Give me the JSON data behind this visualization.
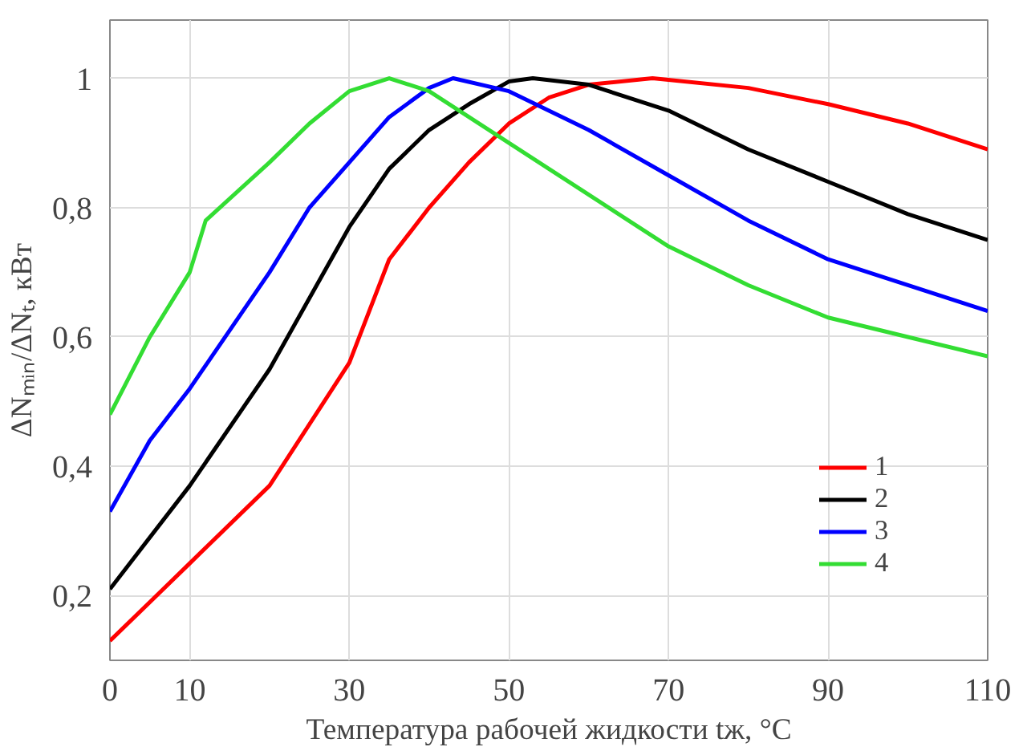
{
  "chart_data": {
    "type": "line",
    "xlabel": "Температура рабочей жидкости tж, °C",
    "ylabel": "ΔNₘᵢₙ/ΔNₜ, кВт",
    "xlim": [
      0,
      110
    ],
    "xticks": [
      0,
      10,
      30,
      50,
      70,
      90,
      110
    ],
    "ylim": [
      0.1,
      1.09
    ],
    "yticks": [
      {
        "value": 0.2,
        "label": "0,2"
      },
      {
        "value": 0.4,
        "label": "0,4"
      },
      {
        "value": 0.6,
        "label": "0,6"
      },
      {
        "value": 0.8,
        "label": "0,8"
      },
      {
        "value": 1,
        "label": "1"
      }
    ],
    "grid": true,
    "legend": "bottom right",
    "marker": "none",
    "line_style": "solid",
    "series": [
      {
        "name": "1",
        "color": "#ff0000",
        "x": [
          0,
          5,
          10,
          20,
          30,
          35,
          40,
          45,
          50,
          55,
          60,
          68,
          80,
          90,
          100,
          110
        ],
        "values": [
          0.13,
          0.19,
          0.25,
          0.37,
          0.56,
          0.72,
          0.8,
          0.87,
          0.93,
          0.97,
          0.99,
          1.0,
          0.985,
          0.96,
          0.93,
          0.89
        ]
      },
      {
        "name": "2",
        "color": "#000000",
        "x": [
          0,
          10,
          20,
          30,
          35,
          40,
          45,
          50,
          53,
          60,
          70,
          80,
          90,
          100,
          110
        ],
        "values": [
          0.21,
          0.37,
          0.55,
          0.77,
          0.86,
          0.92,
          0.96,
          0.995,
          1.0,
          0.99,
          0.95,
          0.89,
          0.84,
          0.79,
          0.75
        ]
      },
      {
        "name": "3",
        "color": "#0000ff",
        "x": [
          0,
          5,
          10,
          15,
          20,
          25,
          30,
          35,
          40,
          43,
          50,
          60,
          70,
          80,
          90,
          100,
          110
        ],
        "values": [
          0.33,
          0.44,
          0.52,
          0.61,
          0.7,
          0.8,
          0.87,
          0.94,
          0.985,
          1.0,
          0.98,
          0.92,
          0.85,
          0.78,
          0.72,
          0.68,
          0.64
        ]
      },
      {
        "name": "4",
        "color": "#33dd33",
        "x": [
          0,
          5,
          10,
          12,
          20,
          25,
          30,
          35,
          40,
          50,
          60,
          70,
          80,
          90,
          100,
          110
        ],
        "values": [
          0.48,
          0.6,
          0.7,
          0.78,
          0.87,
          0.93,
          0.98,
          1.0,
          0.98,
          0.9,
          0.82,
          0.74,
          0.68,
          0.63,
          0.6,
          0.57
        ]
      }
    ]
  }
}
